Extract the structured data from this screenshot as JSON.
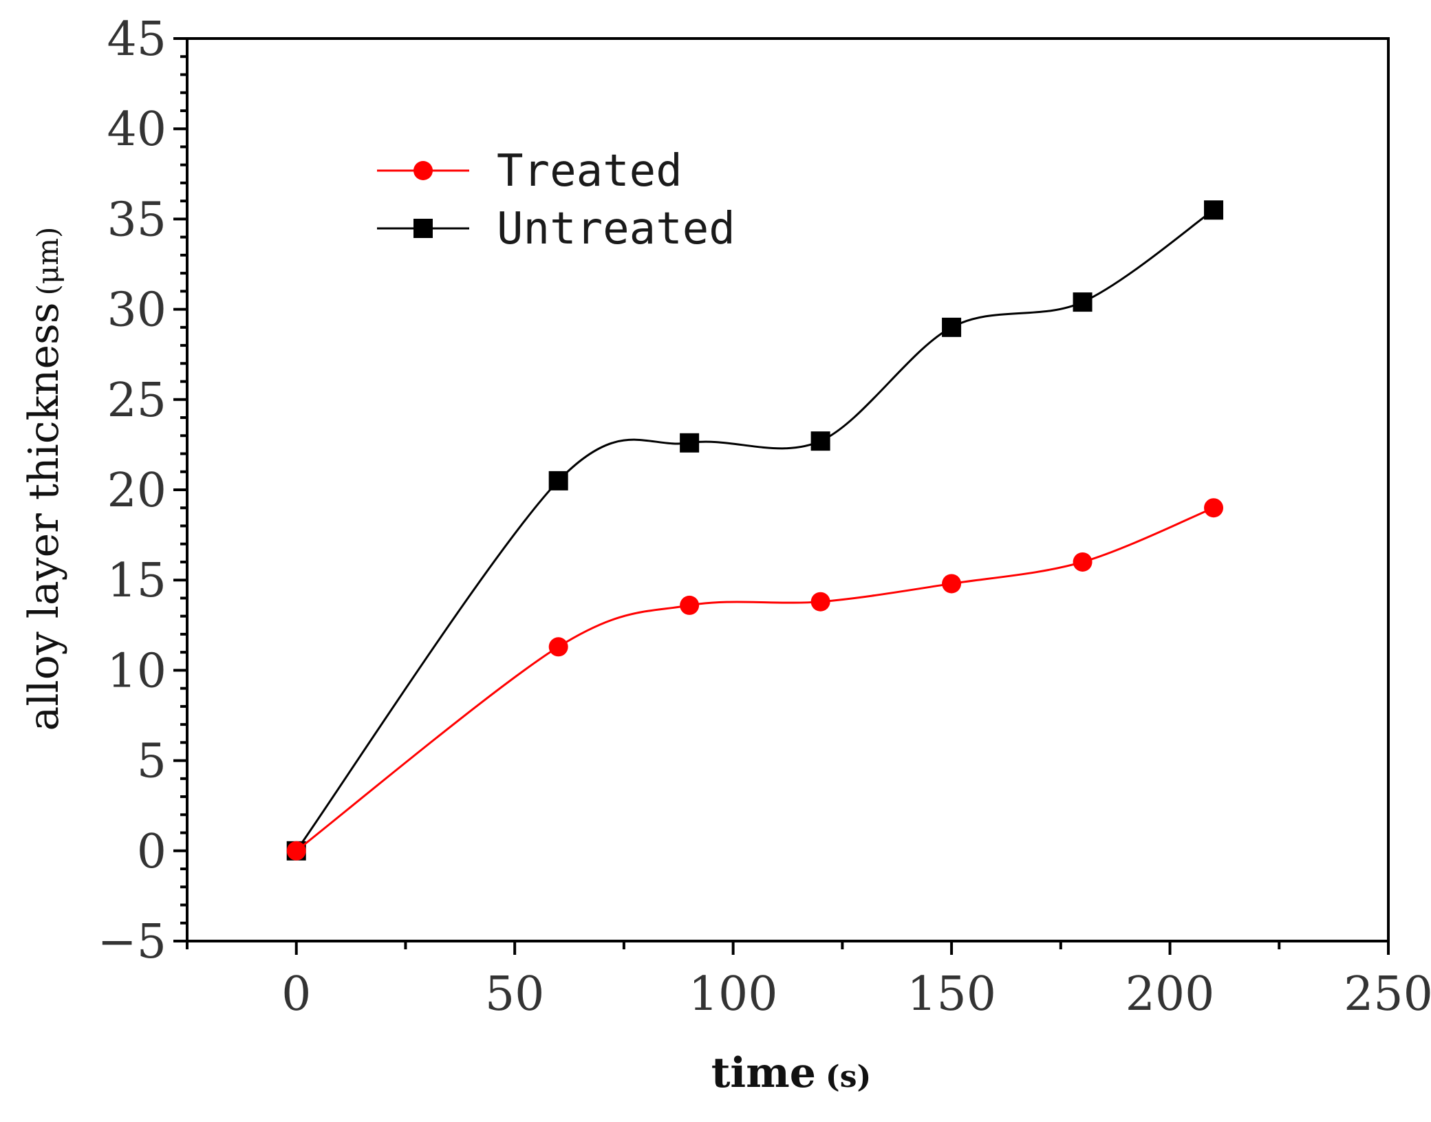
{
  "chart_data": {
    "type": "line",
    "title": "",
    "xlabel": "time",
    "xlabel_unit": "(s)",
    "ylabel": "alloy layer thickness",
    "ylabel_unit": "(μm)",
    "xlim": [
      -25,
      250
    ],
    "ylim": [
      -5,
      45
    ],
    "xticks": [
      0,
      50,
      100,
      150,
      200,
      250
    ],
    "yticks": [
      -5,
      0,
      5,
      10,
      15,
      20,
      25,
      30,
      35,
      40,
      45
    ],
    "xtick_labels": [
      "0",
      "50",
      "100",
      "150",
      "200",
      "250"
    ],
    "ytick_labels": [
      "−5",
      "0",
      "5",
      "10",
      "15",
      "20",
      "25",
      "30",
      "35",
      "40",
      "45"
    ],
    "grid": false,
    "legend_position": "top-left",
    "series": [
      {
        "name": "Treated",
        "color": "#ff0000",
        "marker": "circle",
        "x": [
          0,
          60,
          90,
          120,
          150,
          180,
          210
        ],
        "y": [
          0,
          11.3,
          13.6,
          13.8,
          14.8,
          16.0,
          19.0
        ]
      },
      {
        "name": "Untreated",
        "color": "#000000",
        "marker": "square",
        "x": [
          0,
          60,
          90,
          120,
          150,
          180,
          210
        ],
        "y": [
          0,
          20.5,
          22.6,
          22.7,
          29.0,
          30.4,
          35.5
        ]
      }
    ]
  }
}
